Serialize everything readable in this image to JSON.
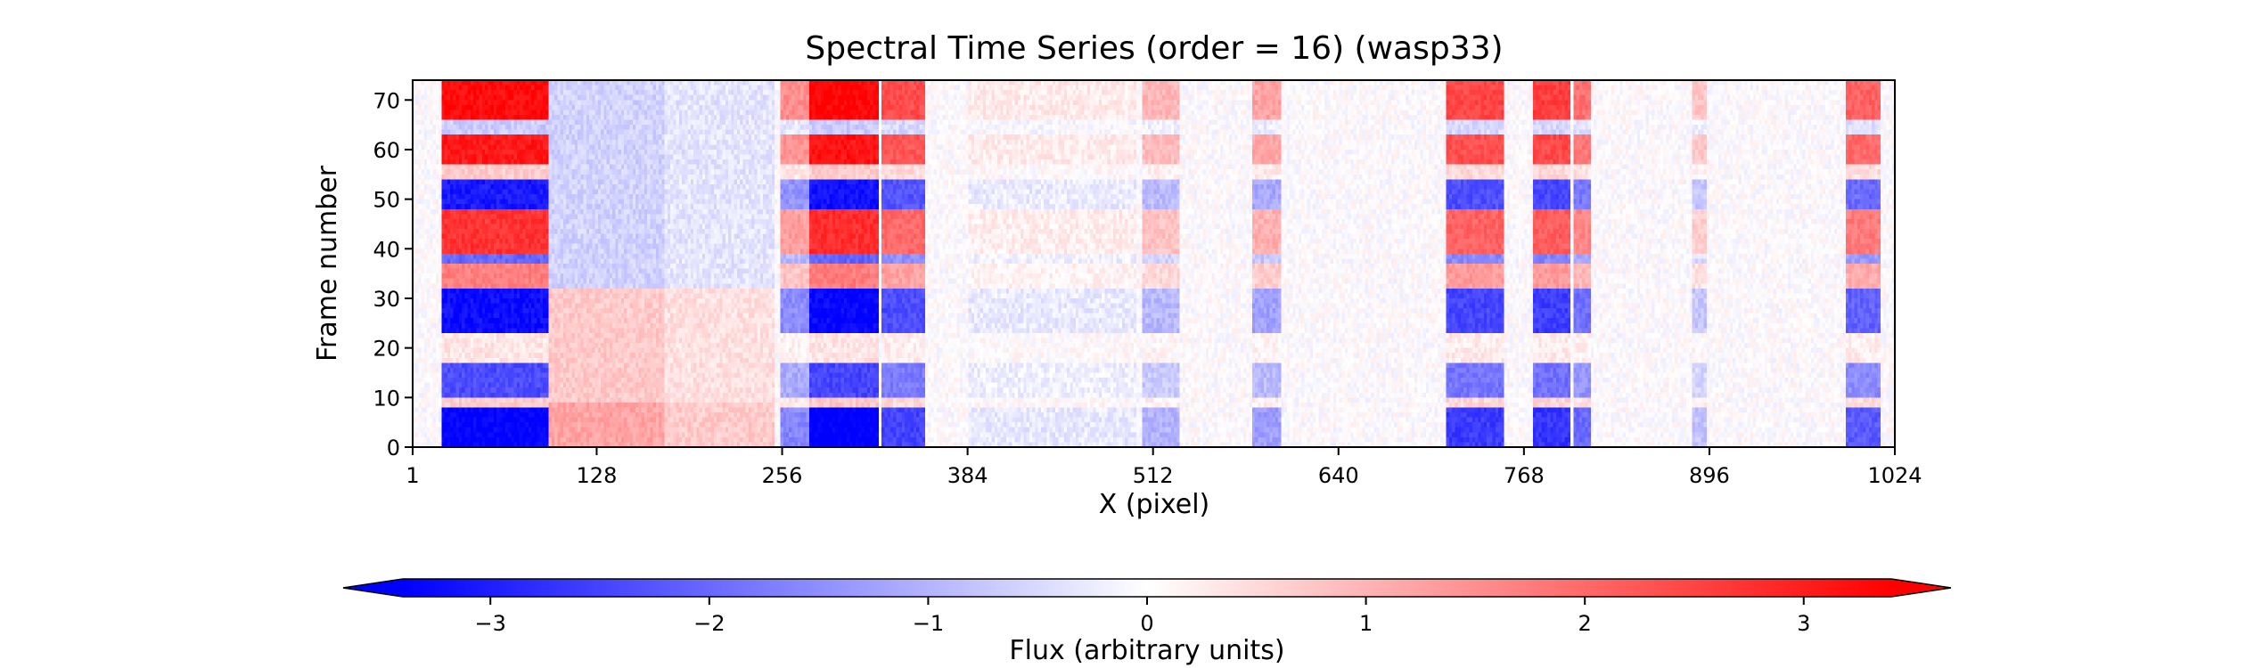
{
  "chart_data": {
    "type": "heatmap",
    "title": "Spectral Time Series (order = 16) (wasp33)",
    "xlabel": "X (pixel)",
    "ylabel": "Frame number",
    "xlim": [
      1,
      1024
    ],
    "ylim": [
      0,
      74
    ],
    "x_ticks": [
      1,
      128,
      256,
      384,
      512,
      640,
      768,
      896,
      1024
    ],
    "y_ticks": [
      0,
      10,
      20,
      30,
      40,
      50,
      60,
      70
    ],
    "colormap": "bwr",
    "colors": {
      "min": "#0000ff",
      "mid": "#ffffff",
      "max": "#ff0000"
    },
    "colorbar": {
      "label": "Flux (arbitrary units)",
      "range": [
        -3.4,
        3.4
      ],
      "ticks": [
        -3,
        -2,
        -1,
        0,
        1,
        2,
        3
      ],
      "tick_labels": [
        "−3",
        "−2",
        "−1",
        "0",
        "1",
        "2",
        "3"
      ],
      "extend": "both",
      "orientation": "horizontal"
    },
    "x_bands": [
      {
        "x0": 20,
        "x1": 95,
        "amp": 3.4
      },
      {
        "x0": 95,
        "x1": 175,
        "amp": 1.2
      },
      {
        "x0": 175,
        "x1": 250,
        "amp": 0.7
      },
      {
        "x0": 255,
        "x1": 275,
        "amp": 1.6
      },
      {
        "x0": 275,
        "x1": 322,
        "amp": 3.5
      },
      {
        "x0": 325,
        "x1": 355,
        "amp": 2.5
      },
      {
        "x0": 385,
        "x1": 500,
        "amp": 0.3
      },
      {
        "x0": 505,
        "x1": 530,
        "amp": 1.0
      },
      {
        "x0": 580,
        "x1": 600,
        "amp": 1.3
      },
      {
        "x0": 715,
        "x1": 755,
        "amp": 2.6
      },
      {
        "x0": 775,
        "x1": 800,
        "amp": 2.7
      },
      {
        "x0": 803,
        "x1": 815,
        "amp": 2.0
      },
      {
        "x0": 885,
        "x1": 895,
        "amp": 0.8
      },
      {
        "x0": 990,
        "x1": 1015,
        "amp": 2.2
      }
    ],
    "frame_sign": [
      {
        "y0": 0,
        "y1": 8,
        "v": -1.0
      },
      {
        "y0": 8,
        "y1": 10,
        "v": 0.2
      },
      {
        "y0": 10,
        "y1": 17,
        "v": -0.7
      },
      {
        "y0": 17,
        "y1": 23,
        "v": 0.1
      },
      {
        "y0": 23,
        "y1": 32,
        "v": -0.95
      },
      {
        "y0": 32,
        "y1": 37,
        "v": 0.5
      },
      {
        "y0": 37,
        "y1": 39,
        "v": -0.6
      },
      {
        "y0": 39,
        "y1": 48,
        "v": 0.8
      },
      {
        "y0": 48,
        "y1": 54,
        "v": -0.9
      },
      {
        "y0": 54,
        "y1": 57,
        "v": 0.2
      },
      {
        "y0": 57,
        "y1": 63,
        "v": 0.9
      },
      {
        "y0": 63,
        "y1": 66,
        "v": -0.2
      },
      {
        "y0": 66,
        "y1": 74,
        "v": 0.95
      }
    ]
  }
}
